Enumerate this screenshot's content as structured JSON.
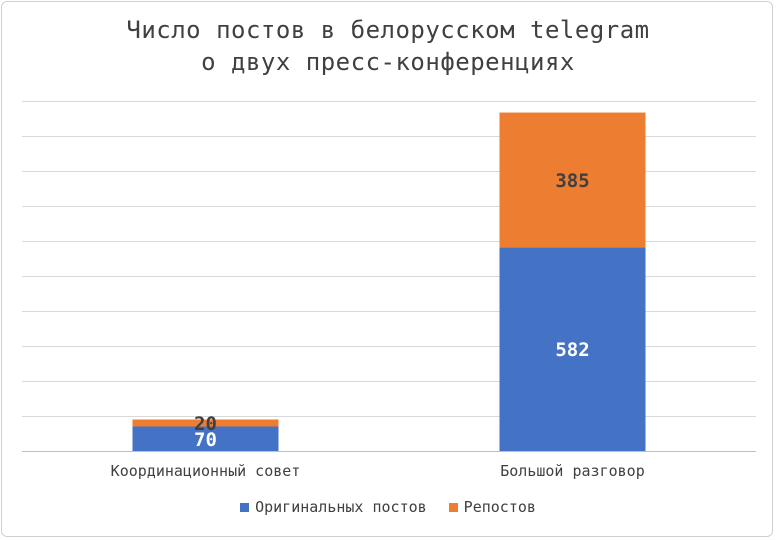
{
  "chart_data": {
    "type": "bar",
    "stacked": true,
    "title_lines": [
      "Число постов в белорусском telegram",
      "о двух пресс-конференциях"
    ],
    "categories": [
      "Координационный совет",
      "Большой разговор"
    ],
    "series": [
      {
        "name": "Оригинальных постов",
        "values": [
          70,
          582
        ],
        "color": "#4472C4",
        "label_color": "#ffffff"
      },
      {
        "name": "Репостов",
        "values": [
          20,
          385
        ],
        "color": "#ED7D31",
        "label_color": "#404040"
      }
    ],
    "ylim": [
      0,
      1000
    ],
    "gridlines": true,
    "grid_step": 100,
    "y_axis_labels_shown": false,
    "legend_position": "bottom"
  }
}
